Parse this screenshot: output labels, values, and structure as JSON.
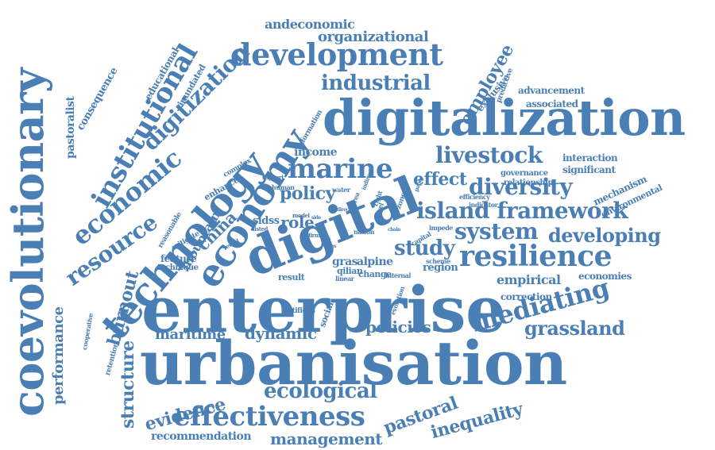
{
  "palette": {
    "word": "#4a7fb5",
    "background": "#ffffff"
  },
  "words": [
    {
      "text": "coevolutionary",
      "angle": -90
    },
    {
      "text": "enterprise",
      "angle": 0
    },
    {
      "text": "urbanisation",
      "angle": 0
    },
    {
      "text": "digitalization",
      "angle": 0
    },
    {
      "text": "digital",
      "angle": -22
    },
    {
      "text": "technology",
      "angle": -50
    },
    {
      "text": "economy",
      "angle": -58
    },
    {
      "text": "institutional",
      "angle": -60
    },
    {
      "text": "economic",
      "angle": -40
    },
    {
      "text": "resource",
      "angle": -35
    },
    {
      "text": "development",
      "angle": 0
    },
    {
      "text": "digitization",
      "angle": -45
    },
    {
      "text": "marine",
      "angle": 0
    },
    {
      "text": "industrial",
      "angle": 0
    },
    {
      "text": "livestock",
      "angle": 0
    },
    {
      "text": "diversity",
      "angle": 0
    },
    {
      "text": "island framework",
      "angle": 0
    },
    {
      "text": "system",
      "angle": 0
    },
    {
      "text": "developing",
      "angle": 0
    },
    {
      "text": "resilience",
      "angle": 0
    },
    {
      "text": "study",
      "angle": 0
    },
    {
      "text": "mediating",
      "angle": -15
    },
    {
      "text": "grassland",
      "angle": 0
    },
    {
      "text": "effectiveness",
      "angle": 0
    },
    {
      "text": "ecological",
      "angle": 0
    },
    {
      "text": "evidence",
      "angle": -15
    },
    {
      "text": "pastoral",
      "angle": -20
    },
    {
      "text": "inequality",
      "angle": -15
    },
    {
      "text": "management",
      "angle": 0
    },
    {
      "text": "recommendation",
      "angle": 0
    },
    {
      "text": "structure",
      "angle": -90
    },
    {
      "text": "performance",
      "angle": -90
    },
    {
      "text": "burnout",
      "angle": -75
    },
    {
      "text": "maritime",
      "angle": 0
    },
    {
      "text": "dynamic",
      "angle": 0
    },
    {
      "text": "policies",
      "angle": 0
    },
    {
      "text": "policy",
      "angle": 0
    },
    {
      "text": "effect",
      "angle": 0
    },
    {
      "text": "role",
      "angle": 0
    },
    {
      "text": "employee",
      "angle": -60
    },
    {
      "text": "china",
      "angle": -45
    },
    {
      "text": "organizational",
      "angle": 0
    },
    {
      "text": "andeconomic",
      "angle": 0
    },
    {
      "text": "empirical",
      "angle": 0
    },
    {
      "text": "economies",
      "angle": 0
    },
    {
      "text": "correction",
      "angle": 0
    },
    {
      "text": "income",
      "angle": 0
    },
    {
      "text": "sidss",
      "angle": 0
    },
    {
      "text": "mountain",
      "angle": -60
    },
    {
      "text": "pastoralist",
      "angle": -90
    },
    {
      "text": "consequence",
      "angle": -60
    },
    {
      "text": "educational",
      "angle": -60
    },
    {
      "text": "inundated",
      "angle": -60
    },
    {
      "text": "advancement",
      "angle": 0
    },
    {
      "text": "associated",
      "angle": 0
    },
    {
      "text": "interaction",
      "angle": 0
    },
    {
      "text": "significant",
      "angle": 0
    },
    {
      "text": "mechanism",
      "angle": -25
    },
    {
      "text": "environmental",
      "angle": -25
    },
    {
      "text": "exclusive",
      "angle": -50
    },
    {
      "text": "predictive",
      "angle": -70
    },
    {
      "text": "governance",
      "angle": 0
    },
    {
      "text": "relationship",
      "angle": 0
    },
    {
      "text": "gras",
      "angle": 0
    },
    {
      "text": "alpine",
      "angle": 0
    },
    {
      "text": "qilian",
      "angle": 0
    },
    {
      "text": "change",
      "angle": 0
    },
    {
      "text": "region",
      "angle": 0
    },
    {
      "text": "feature",
      "angle": 0
    },
    {
      "text": "technique",
      "angle": 0
    },
    {
      "text": "result",
      "angle": 0
    },
    {
      "text": "social",
      "angle": -70
    },
    {
      "text": "artificial",
      "angle": 0
    },
    {
      "text": "retention",
      "angle": -75
    },
    {
      "text": "cooperative",
      "angle": -80
    },
    {
      "text": "enhance",
      "angle": -30
    },
    {
      "text": "complex",
      "angle": -30
    },
    {
      "text": "reasonable",
      "angle": -60
    },
    {
      "text": "mitigate",
      "angle": -30
    },
    {
      "text": "information",
      "angle": -60
    },
    {
      "text": "efficiency",
      "angle": 0
    },
    {
      "text": "indicator",
      "angle": 0
    },
    {
      "text": "capital",
      "angle": -30
    },
    {
      "text": "impede",
      "angle": 0
    },
    {
      "text": "linear",
      "angle": 0
    },
    {
      "text": "internal",
      "angle": 0
    },
    {
      "text": "scheme",
      "angle": 0
    },
    {
      "text": "evolution",
      "angle": -70
    },
    {
      "text": "human",
      "angle": 0
    },
    {
      "text": "water",
      "angle": 0
    },
    {
      "text": "nation",
      "angle": 0
    },
    {
      "text": "area",
      "angle": -70
    },
    {
      "text": "level",
      "angle": -70
    },
    {
      "text": "right",
      "angle": -70
    },
    {
      "text": "zone",
      "angle": -70
    },
    {
      "text": "support",
      "angle": 0
    },
    {
      "text": "model",
      "angle": 0
    },
    {
      "text": "listed",
      "angle": 0
    },
    {
      "text": "firm",
      "angle": 0
    },
    {
      "text": "reveal",
      "angle": -30
    },
    {
      "text": "direct",
      "angle": 0
    },
    {
      "text": "link",
      "angle": 0
    },
    {
      "text": "chain",
      "angle": 0
    },
    {
      "text": "paper",
      "angle": -70
    },
    {
      "text": "indirect",
      "angle": -70
    },
    {
      "text": "side",
      "angle": 0
    },
    {
      "text": "cities",
      "angle": 0
    }
  ]
}
